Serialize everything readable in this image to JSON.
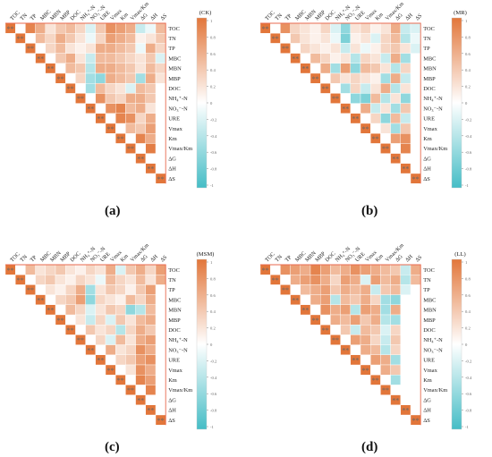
{
  "variables": [
    "TOC",
    "TN",
    "TP",
    "MBC",
    "MBN",
    "MBP",
    "DOC",
    "NH₄⁺-N",
    "NO₃⁻-N",
    "URE",
    "Vmax",
    "Km",
    "Vmax/Km",
    "ΔG",
    "ΔH",
    "ΔS"
  ],
  "colors": {
    "positive": "#E2763A",
    "neutral": "#FFFFFF",
    "negative": "#45BDC6",
    "triangle_edge": "#E86A4F",
    "marker": "#666666"
  },
  "colorbar_ticks": [
    "1",
    "0.8",
    "0.6",
    "0.4",
    "0.2",
    "0",
    "-0.2",
    "-0.4",
    "-0.6",
    "-0.8",
    "-1"
  ],
  "significance_marker": "*",
  "chart_data": [
    {
      "type": "heatmap",
      "caption": "(a)",
      "legend_title": "(CK)",
      "variables": [
        "TOC",
        "TN",
        "TP",
        "MBC",
        "MBN",
        "MBP",
        "DOC",
        "NH₄⁺-N",
        "NO₃⁻-N",
        "URE",
        "Vmax",
        "Km",
        "Vmax/Km",
        "ΔG",
        "ΔH",
        "ΔS"
      ],
      "value_range": [
        -1,
        1
      ],
      "legend_placement": "right",
      "diagonal_significance": "**",
      "upper_triangle": [
        [
          0.9,
          0.6,
          0.2,
          0.4,
          0.5,
          0.3,
          -0.2,
          0.4,
          0.8,
          0.7,
          0.6,
          -0.3,
          -0.1,
          0.5
        ],
        [
          0.5,
          0.3,
          0.6,
          0.4,
          0.2,
          -0.1,
          0.3,
          0.7,
          0.6,
          0.5,
          0.1,
          0.2,
          0.4
        ],
        [
          0.3,
          0.5,
          0.2,
          0.1,
          0.2,
          0.6,
          0.6,
          0.5,
          0.4,
          -0.1,
          0.6,
          0.3
        ],
        [
          0.4,
          0.6,
          0.2,
          -0.3,
          0.5,
          0.5,
          0.4,
          0.3,
          0.2,
          0.4,
          -0.2
        ],
        [
          0.5,
          0.4,
          -0.4,
          0.6,
          0.6,
          0.5,
          0.4,
          0.2,
          0.5,
          0.3
        ],
        [
          0.3,
          -0.5,
          -0.6,
          0.6,
          0.5,
          0.4,
          -0.5,
          0.6,
          0.2
        ],
        [
          -0.5,
          0.5,
          0.3,
          0.2,
          -0.2,
          0.5,
          0.4
        ],
        [
          0.8,
          0.4,
          0.3,
          0.6,
          0.6,
          0.4
        ],
        [
          0.8,
          0.9,
          0.5,
          0.6,
          0.2
        ],
        [
          0.9,
          0.8,
          0.3,
          0.6
        ],
        [
          0.5,
          0.4,
          0.7
        ],
        [
          0.9,
          0.6
        ],
        [
          0.95
        ]
      ]
    },
    {
      "type": "heatmap",
      "caption": "(b)",
      "legend_title": "(MR)",
      "variables": [
        "TOC",
        "TN",
        "TP",
        "MBC",
        "MBN",
        "MBP",
        "DOC",
        "NH₄⁺-N",
        "NO₃⁻-N",
        "URE",
        "Vmax",
        "Km",
        "Vmax/Km",
        "ΔG",
        "ΔH",
        "ΔS"
      ],
      "value_range": [
        -1,
        1
      ],
      "legend_placement": "right",
      "diagonal_significance": "**",
      "upper_triangle": [
        [
          0.8,
          0.3,
          0.2,
          0.1,
          0.3,
          -0.2,
          -0.6,
          0.2,
          0.3,
          0.1,
          0.2,
          0.6,
          -0.3,
          -0.2
        ],
        [
          0.4,
          0.2,
          0.1,
          0.2,
          -0.1,
          -0.7,
          0.1,
          0.2,
          -0.2,
          0.3,
          0.5,
          -0.4,
          -0.1
        ],
        [
          0.3,
          0.2,
          0.1,
          0.2,
          -0.3,
          0.2,
          -0.1,
          0.1,
          0.3,
          0.4,
          0.2,
          -0.2
        ],
        [
          0.5,
          0.3,
          0.1,
          0.2,
          -0.4,
          0.3,
          0.2,
          -0.3,
          0.6,
          -0.5
        ],
        [
          0.6,
          -0.5,
          0.7,
          -0.6,
          0.5,
          0.4,
          0.2,
          -0.4,
          0.3
        ],
        [
          0.4,
          0.2,
          0.3,
          0.2,
          0.1,
          -0.5,
          0.6,
          -0.3
        ],
        [
          -0.5,
          0.3,
          -0.3,
          0.2,
          0.6,
          -0.4,
          0.2
        ],
        [
          -0.6,
          -0.7,
          0.5,
          -0.4,
          0.2,
          -0.6
        ],
        [
          0.6,
          -0.3,
          0.2,
          -0.5,
          0.4
        ],
        [
          0.3,
          -0.6,
          0.5,
          -0.3
        ],
        [
          0.2,
          -0.5,
          0.4
        ],
        [
          0.7,
          0.8
        ],
        [
          0.9
        ]
      ]
    },
    {
      "type": "heatmap",
      "caption": "(c)",
      "legend_title": "(MSM)",
      "variables": [
        "TOC",
        "TN",
        "TP",
        "MBC",
        "MBN",
        "MBP",
        "DOC",
        "NH₄⁺-N",
        "NO₃⁻-N",
        "URE",
        "Vmax",
        "Km",
        "Vmax/Km",
        "ΔG",
        "ΔH",
        "ΔS"
      ],
      "value_range": [
        -1,
        1
      ],
      "legend_placement": "right",
      "diagonal_significance": "**",
      "upper_triangle": [
        [
          0.5,
          0.2,
          0.3,
          0.4,
          0.2,
          0.1,
          0.3,
          0.2,
          0.6,
          -0.2,
          0.4,
          0.6,
          0.3,
          0.7
        ],
        [
          0.3,
          0.4,
          0.2,
          0.1,
          0.3,
          0.2,
          -0.1,
          0.5,
          0.3,
          0.2,
          0.5,
          0.2,
          0.6
        ],
        [
          0.2,
          0.1,
          0.3,
          0.6,
          -0.5,
          0.2,
          0.4,
          0.3,
          0.1,
          0.4,
          0.7
        ],
        [
          0.3,
          0.4,
          0.7,
          -0.6,
          0.3,
          0.2,
          0.1,
          0.5,
          0.3,
          0.6
        ],
        [
          0.5,
          0.3,
          -0.2,
          0.2,
          0.4,
          0.3,
          -0.6,
          -0.4,
          0.5
        ],
        [
          0.2,
          -0.3,
          0.3,
          -0.2,
          0.4,
          0.2,
          0.5,
          0.6
        ],
        [
          0.4,
          0.2,
          0.3,
          -0.4,
          0.3,
          0.6,
          0.4
        ],
        [
          0.3,
          -0.2,
          0.5,
          0.2,
          0.6,
          0.7
        ],
        [
          0.6,
          0.2,
          0.3,
          0.8,
          0.6
        ],
        [
          0.3,
          0.4,
          0.7,
          0.8
        ],
        [
          0.2,
          0.8,
          0.6
        ],
        [
          0.9,
          0.7
        ],
        [
          0.9
        ]
      ]
    },
    {
      "type": "heatmap",
      "caption": "(d)",
      "legend_title": "(LL)",
      "variables": [
        "TOC",
        "TN",
        "TP",
        "MBC",
        "MBN",
        "MBP",
        "DOC",
        "NH₄⁺-N",
        "NO₃⁻-N",
        "URE",
        "Vmax",
        "Km",
        "Vmax/Km",
        "ΔG",
        "ΔH",
        "ΔS"
      ],
      "value_range": [
        -1,
        1
      ],
      "legend_placement": "right",
      "diagonal_significance": "**",
      "upper_triangle": [
        [
          0.8,
          0.7,
          0.6,
          0.9,
          0.7,
          0.5,
          0.6,
          0.8,
          0.7,
          0.6,
          0.5,
          0.4,
          -0.3,
          0.6
        ],
        [
          0.6,
          0.7,
          0.8,
          0.6,
          0.3,
          0.7,
          0.6,
          -0.2,
          0.7,
          0.5,
          0.6,
          -0.4,
          0.5
        ],
        [
          0.5,
          0.6,
          0.7,
          0.4,
          0.6,
          0.5,
          0.6,
          -0.3,
          0.4,
          0.5,
          -0.2
        ],
        [
          0.6,
          0.7,
          -0.4,
          0.5,
          0.4,
          0.6,
          0.3,
          -0.5,
          -0.6
        ],
        [
          0.8,
          0.6,
          0.7,
          -0.4,
          0.7,
          0.6,
          -0.5,
          0.6
        ],
        [
          0.6,
          0.5,
          0.7,
          0.4,
          0.6,
          -0.4,
          -0.5
        ],
        [
          0.4,
          -0.3,
          0.5,
          0.4,
          -0.2,
          0.3
        ],
        [
          0.7,
          0.6,
          0.3,
          -0.3,
          0.4
        ],
        [
          0.6,
          0.5,
          -0.4,
          0.3
        ],
        [
          0.7,
          0.6,
          -0.5
        ],
        [
          0.6,
          0.4
        ],
        [
          -0.5
        ],
        []
      ]
    }
  ]
}
